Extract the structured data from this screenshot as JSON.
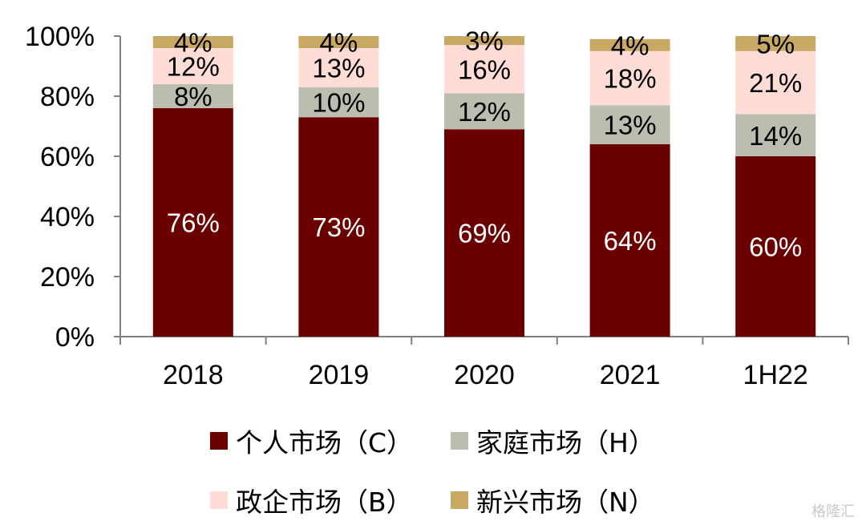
{
  "chart_data": {
    "type": "bar",
    "stacked": true,
    "categories": [
      "2018",
      "2019",
      "2020",
      "2021",
      "1H22"
    ],
    "series": [
      {
        "name": "个人市场（C）",
        "values": [
          76,
          73,
          69,
          64,
          60
        ],
        "labels": [
          "76%",
          "73%",
          "69%",
          "64%",
          "60%"
        ],
        "color": "#6b0000",
        "label_color": "#ffffff"
      },
      {
        "name": "家庭市场（H）",
        "values": [
          8,
          10,
          12,
          13,
          14
        ],
        "labels": [
          "8%",
          "10%",
          "12%",
          "13%",
          "14%"
        ],
        "color": "#bcbcaf",
        "label_color": "#000000"
      },
      {
        "name": "政企市场（B）",
        "values": [
          12,
          13,
          16,
          18,
          21
        ],
        "labels": [
          "12%",
          "13%",
          "16%",
          "18%",
          "21%"
        ],
        "color": "#ffdcd6",
        "label_color": "#000000"
      },
      {
        "name": "新兴市场（N）",
        "values": [
          4,
          4,
          3,
          4,
          5
        ],
        "labels": [
          "4%",
          "4%",
          "3%",
          "4%",
          "5%"
        ],
        "color": "#c8a862",
        "label_color": "#000000"
      }
    ],
    "y_ticks": [
      "0%",
      "20%",
      "40%",
      "60%",
      "80%",
      "100%"
    ],
    "ylim": [
      0,
      100
    ],
    "title": "",
    "xlabel": "",
    "ylabel": "",
    "grid": false,
    "legend_position": "bottom"
  },
  "watermark": "格隆汇"
}
